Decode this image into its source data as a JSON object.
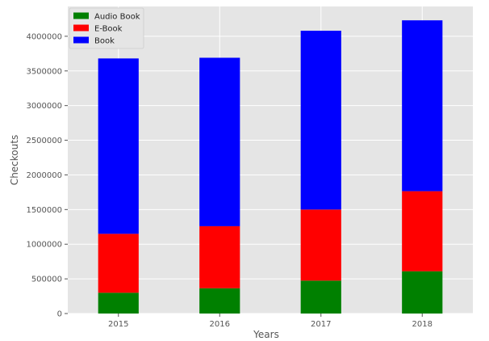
{
  "chart_data": {
    "type": "bar",
    "stacked": true,
    "title": "",
    "xlabel": "Years",
    "ylabel": "Checkouts",
    "categories": [
      "2015",
      "2016",
      "2017",
      "2018"
    ],
    "ylim": [
      0,
      4430000
    ],
    "yticks": [
      0,
      500000,
      1000000,
      1500000,
      2000000,
      2500000,
      3000000,
      3500000,
      4000000
    ],
    "grid": true,
    "legend_position": "top-left",
    "series": [
      {
        "name": "Audio Book",
        "color": "#008000",
        "values": [
          300000,
          365000,
          475000,
          610000
        ]
      },
      {
        "name": "E-Book",
        "color": "#ff0000",
        "values": [
          850000,
          895000,
          1025000,
          1155000
        ]
      },
      {
        "name": "Book",
        "color": "#0000ff",
        "values": [
          2530000,
          2430000,
          2580000,
          2465000
        ]
      }
    ]
  }
}
